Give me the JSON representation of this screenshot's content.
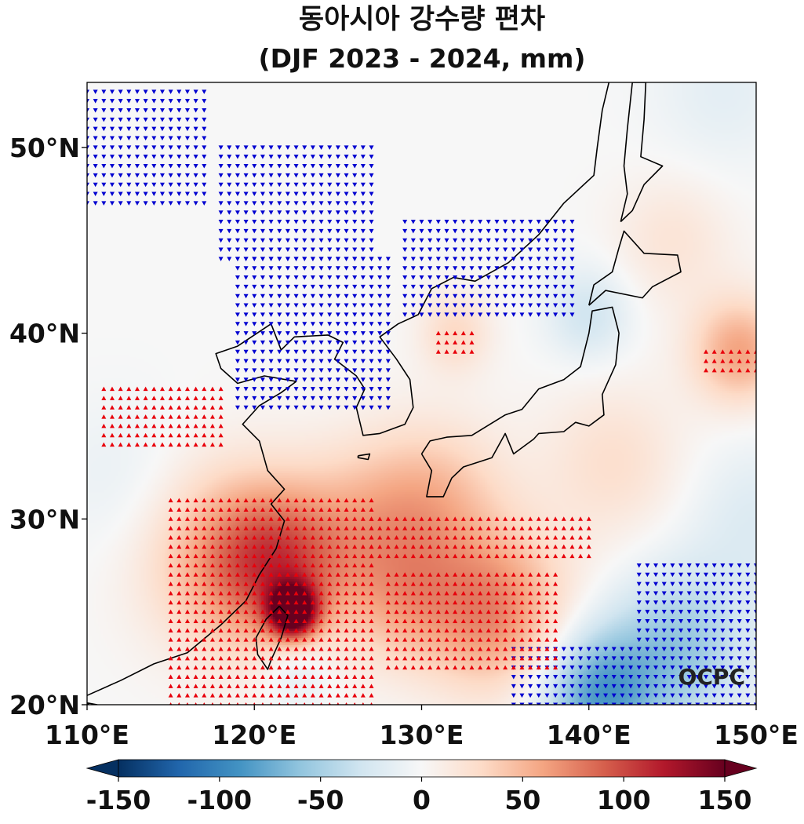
{
  "chart_data": {
    "type": "heatmap",
    "title_line1": "동아시아 강수량 편차",
    "title_line2": "(DJF 2023 - 2024, mm)",
    "xlim": [
      110,
      150
    ],
    "ylim": [
      20,
      53.5
    ],
    "x_ticks": [
      110,
      120,
      130,
      140,
      150
    ],
    "x_tick_labels": [
      "110°E",
      "120°E",
      "130°E",
      "140°E",
      "150°E"
    ],
    "y_ticks": [
      20,
      30,
      40,
      50
    ],
    "y_tick_labels": [
      "20°N",
      "30°N",
      "40°N",
      "50°N"
    ],
    "colorbar": {
      "range": [
        -150,
        150
      ],
      "ticks": [
        -150,
        -100,
        -50,
        0,
        50,
        100,
        150
      ],
      "tick_labels": [
        "-150",
        "-100",
        "-50",
        "0",
        "50",
        "100",
        "150"
      ],
      "colormap": "RdBu_r",
      "extend": "both"
    },
    "anomaly_centers": [
      {
        "lon": 122.3,
        "lat": 25.0,
        "value": 150,
        "sigma": 1.0
      },
      {
        "lon": 121.5,
        "lat": 27.5,
        "value": 80,
        "sigma": 3.0
      },
      {
        "lon": 118.0,
        "lat": 28.0,
        "value": 45,
        "sigma": 3.5
      },
      {
        "lon": 134.5,
        "lat": 25.0,
        "value": 70,
        "sigma": 3.0
      },
      {
        "lon": 129.0,
        "lat": 25.5,
        "value": 40,
        "sigma": 2.5
      },
      {
        "lon": 131.0,
        "lat": 31.0,
        "value": 40,
        "sigma": 3.0
      },
      {
        "lon": 127.0,
        "lat": 30.0,
        "value": 35,
        "sigma": 3.0
      },
      {
        "lon": 149.0,
        "lat": 39.0,
        "value": 60,
        "sigma": 2.0
      },
      {
        "lon": 132.0,
        "lat": 40.0,
        "value": 30,
        "sigma": 1.5
      },
      {
        "lon": 141.5,
        "lat": 33.0,
        "value": 25,
        "sigma": 3.0
      },
      {
        "lon": 145.0,
        "lat": 45.0,
        "value": 20,
        "sigma": 2.5
      },
      {
        "lon": 140.5,
        "lat": 20.5,
        "value": -80,
        "sigma": 2.5
      },
      {
        "lon": 145.5,
        "lat": 23.0,
        "value": -55,
        "sigma": 3.0
      },
      {
        "lon": 140.0,
        "lat": 41.0,
        "value": -30,
        "sigma": 1.8
      },
      {
        "lon": 150.0,
        "lat": 30.0,
        "value": -20,
        "sigma": 3.0
      },
      {
        "lon": 122.5,
        "lat": 22.0,
        "value": -25,
        "sigma": 1.5
      },
      {
        "lon": 148.0,
        "lat": 53.0,
        "value": -15,
        "sigma": 3.0
      },
      {
        "lon": 112.0,
        "lat": 32.0,
        "value": -12,
        "sigma": 3.0
      }
    ],
    "significance": {
      "positive_marker": "▲ (red)",
      "negative_marker": "▼ (blue)",
      "grid_spacing_deg": 0.5,
      "negative_regions": [
        {
          "lon_min": 110,
          "lon_max": 117,
          "lat_min": 47,
          "lat_max": 53
        },
        {
          "lon_min": 118,
          "lon_max": 127,
          "lat_min": 44,
          "lat_max": 50
        },
        {
          "lon_min": 119,
          "lon_max": 128,
          "lat_min": 36,
          "lat_max": 44
        },
        {
          "lon_min": 129,
          "lon_max": 139,
          "lat_min": 41,
          "lat_max": 46
        },
        {
          "lon_min": 135.5,
          "lon_max": 150,
          "lat_min": 20,
          "lat_max": 23
        },
        {
          "lon_min": 143,
          "lon_max": 150,
          "lat_min": 23,
          "lat_max": 27.5
        }
      ],
      "positive_regions": [
        {
          "lon_min": 111,
          "lon_max": 118,
          "lat_min": 34,
          "lat_max": 37
        },
        {
          "lon_min": 115,
          "lon_max": 127,
          "lat_min": 20,
          "lat_max": 31
        },
        {
          "lon_min": 127,
          "lon_max": 140,
          "lat_min": 28,
          "lat_max": 30
        },
        {
          "lon_min": 128,
          "lon_max": 138,
          "lat_min": 22,
          "lat_max": 27
        },
        {
          "lon_min": 147,
          "lon_max": 150,
          "lat_min": 38,
          "lat_max": 39
        },
        {
          "lon_min": 131,
          "lon_max": 133,
          "lat_min": 39,
          "lat_max": 40
        }
      ]
    },
    "coastlines_lonlat": [
      {
        "name": "china-korea-mainland",
        "points": [
          [
            110,
            20.5
          ],
          [
            112,
            21.3
          ],
          [
            114,
            22.2
          ],
          [
            116,
            22.8
          ],
          [
            118,
            24.3
          ],
          [
            119.5,
            25.6
          ],
          [
            120.3,
            27.0
          ],
          [
            121.3,
            28.4
          ],
          [
            121.8,
            29.9
          ],
          [
            121.0,
            30.8
          ],
          [
            121.8,
            31.6
          ],
          [
            120.8,
            32.6
          ],
          [
            120.3,
            34.2
          ],
          [
            119.3,
            35.1
          ],
          [
            120.3,
            36.1
          ],
          [
            121.6,
            36.8
          ],
          [
            122.5,
            37.4
          ],
          [
            120.6,
            37.7
          ],
          [
            119.0,
            37.3
          ],
          [
            118.0,
            38.1
          ],
          [
            117.7,
            38.9
          ],
          [
            119.0,
            39.3
          ],
          [
            121.0,
            40.5
          ],
          [
            121.6,
            39.1
          ],
          [
            122.4,
            39.8
          ],
          [
            124.4,
            39.9
          ],
          [
            125.3,
            39.5
          ],
          [
            124.8,
            38.6
          ],
          [
            126.1,
            37.7
          ],
          [
            126.6,
            37.0
          ],
          [
            126.1,
            36.0
          ],
          [
            126.5,
            34.5
          ],
          [
            127.5,
            34.6
          ],
          [
            129.0,
            35.1
          ],
          [
            129.5,
            36.0
          ],
          [
            129.3,
            37.5
          ],
          [
            128.5,
            38.6
          ],
          [
            127.5,
            39.8
          ],
          [
            128.6,
            40.5
          ],
          [
            129.8,
            41.0
          ],
          [
            130.6,
            42.4
          ],
          [
            131.9,
            43.0
          ],
          [
            133.2,
            42.8
          ],
          [
            135.2,
            43.8
          ],
          [
            137.0,
            45.3
          ],
          [
            138.5,
            47.0
          ],
          [
            140.3,
            48.5
          ],
          [
            140.5,
            50.0
          ],
          [
            140.8,
            52.0
          ],
          [
            141.2,
            53.5
          ]
        ]
      },
      {
        "name": "taiwan",
        "points": [
          [
            121.5,
            25.3
          ],
          [
            122.0,
            24.8
          ],
          [
            121.6,
            23.6
          ],
          [
            121.0,
            22.4
          ],
          [
            120.8,
            21.9
          ],
          [
            120.2,
            22.7
          ],
          [
            120.1,
            23.6
          ],
          [
            120.7,
            24.6
          ],
          [
            121.5,
            25.3
          ]
        ]
      },
      {
        "name": "kyushu-shikoku-honshu",
        "points": [
          [
            130.0,
            33.5
          ],
          [
            130.5,
            34.2
          ],
          [
            131.5,
            34.4
          ],
          [
            133.0,
            34.5
          ],
          [
            135.0,
            35.6
          ],
          [
            136.0,
            35.9
          ],
          [
            137.0,
            37.0
          ],
          [
            138.5,
            37.5
          ],
          [
            139.5,
            38.2
          ],
          [
            140.0,
            40.0
          ],
          [
            140.2,
            41.2
          ],
          [
            141.4,
            41.4
          ],
          [
            141.8,
            40.0
          ],
          [
            141.6,
            38.3
          ],
          [
            140.8,
            36.7
          ],
          [
            140.9,
            35.6
          ],
          [
            140.0,
            35.0
          ],
          [
            139.2,
            35.2
          ],
          [
            138.5,
            34.7
          ],
          [
            137.0,
            34.6
          ],
          [
            136.7,
            34.3
          ],
          [
            135.5,
            33.5
          ],
          [
            135.0,
            34.6
          ],
          [
            134.2,
            33.3
          ],
          [
            132.5,
            32.8
          ],
          [
            131.8,
            32.2
          ],
          [
            131.3,
            31.2
          ],
          [
            130.3,
            31.2
          ],
          [
            130.6,
            32.6
          ],
          [
            130.0,
            33.5
          ]
        ]
      },
      {
        "name": "hokkaido",
        "points": [
          [
            140.0,
            41.5
          ],
          [
            140.3,
            42.6
          ],
          [
            141.4,
            43.3
          ],
          [
            141.8,
            44.6
          ],
          [
            142.1,
            45.5
          ],
          [
            143.3,
            44.3
          ],
          [
            145.3,
            44.2
          ],
          [
            145.5,
            43.3
          ],
          [
            143.8,
            42.5
          ],
          [
            143.2,
            41.9
          ],
          [
            141.0,
            42.3
          ],
          [
            140.0,
            41.5
          ]
        ]
      },
      {
        "name": "sakhalin",
        "points": [
          [
            141.9,
            46.0
          ],
          [
            142.3,
            47.5
          ],
          [
            142.1,
            49.0
          ],
          [
            142.3,
            51.0
          ],
          [
            142.6,
            53.5
          ],
          [
            143.4,
            53.5
          ],
          [
            143.3,
            51.5
          ],
          [
            143.1,
            49.5
          ],
          [
            144.4,
            49.0
          ],
          [
            143.3,
            48.0
          ],
          [
            142.6,
            46.6
          ],
          [
            141.9,
            46.0
          ]
        ]
      },
      {
        "name": "jeju",
        "points": [
          [
            126.2,
            33.4
          ],
          [
            126.9,
            33.5
          ],
          [
            126.8,
            33.2
          ],
          [
            126.2,
            33.3
          ],
          [
            126.2,
            33.4
          ]
        ]
      },
      {
        "name": "hainan",
        "points": [
          [
            110.0,
            20.1
          ],
          [
            110.6,
            20.0
          ],
          [
            110.3,
            19.8
          ],
          [
            110.0,
            20.1
          ]
        ]
      }
    ],
    "credit": "OCPC"
  }
}
